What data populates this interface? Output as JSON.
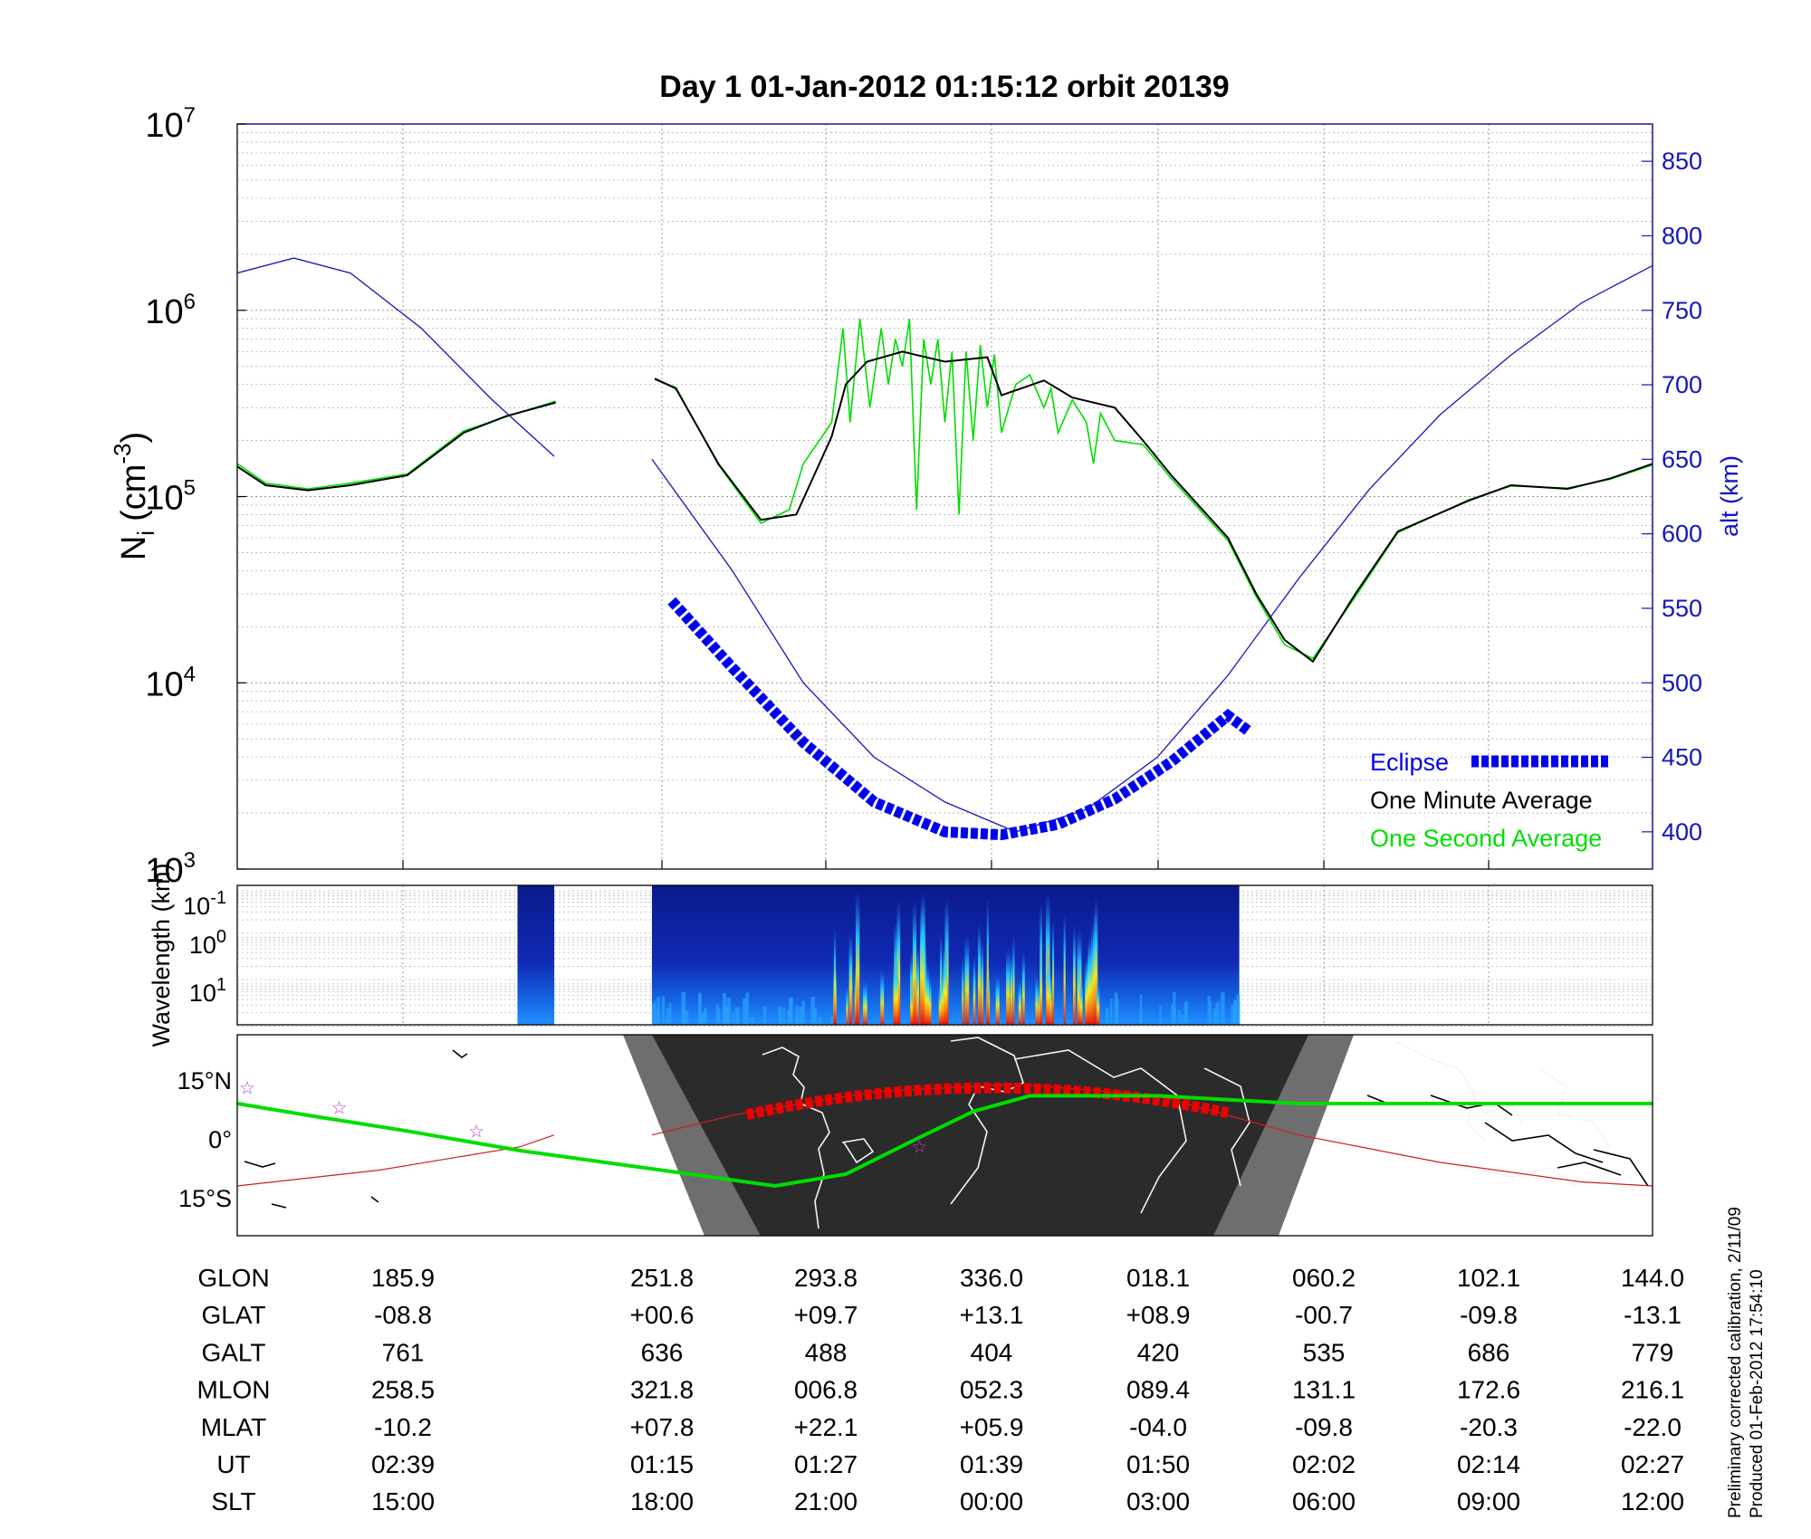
{
  "chart_data": [
    {
      "type": "line",
      "title": "Day 1  01-Jan-2012 01:15:12   orbit 20139",
      "x_label": "UT",
      "x_ticks": [
        "02:39",
        "01:15",
        "01:27",
        "01:39",
        "01:50",
        "02:02",
        "02:14",
        "02:27"
      ],
      "y_scale": "log",
      "ylim": [
        1000,
        10000000
      ],
      "y_ticks": [
        "10^3",
        "10^4",
        "10^5",
        "10^6",
        "10^7"
      ],
      "ylabel_main": "N",
      "ylabel_sub": "i",
      "ylabel_unit": "(cm",
      "ylabel_sup": "-3",
      "ylabel_close": ")",
      "y2label": "alt (km)",
      "y2lim": [
        375,
        875
      ],
      "y2_ticks": [
        "400",
        "450",
        "500",
        "550",
        "600",
        "650",
        "700",
        "750",
        "800",
        "850"
      ],
      "grid": true,
      "legend_position": "bottom-right",
      "series": [
        {
          "name": "Eclipse",
          "color": "#0000ee",
          "axis": "right",
          "style": "dotted-thick",
          "points": [
            [
              0.307,
              555
            ],
            [
              0.35,
              510
            ],
            [
              0.4,
              460
            ],
            [
              0.45,
              420
            ],
            [
              0.5,
              400
            ],
            [
              0.54,
              398
            ],
            [
              0.58,
              405
            ],
            [
              0.62,
              422
            ],
            [
              0.66,
              447
            ],
            [
              0.7,
              478
            ],
            [
              0.714,
              468
            ]
          ]
        },
        {
          "name": "One Minute Average",
          "color": "#000000",
          "axis": "left",
          "points": [
            [
              0.0,
              145000
            ],
            [
              0.02,
              115000
            ],
            [
              0.05,
              108000
            ],
            [
              0.08,
              115000
            ],
            [
              0.12,
              130000
            ],
            [
              0.16,
              220000
            ],
            [
              0.19,
              270000
            ],
            [
              0.225,
              320000
            ],
            [
              0.295,
              430000
            ],
            [
              0.31,
              380000
            ],
            [
              0.34,
              150000
            ],
            [
              0.37,
              75000
            ],
            [
              0.395,
              80000
            ],
            [
              0.42,
              210000
            ],
            [
              0.43,
              400000
            ],
            [
              0.445,
              530000
            ],
            [
              0.47,
              600000
            ],
            [
              0.5,
              530000
            ],
            [
              0.53,
              560000
            ],
            [
              0.54,
              350000
            ],
            [
              0.57,
              420000
            ],
            [
              0.59,
              340000
            ],
            [
              0.62,
              300000
            ],
            [
              0.64,
              200000
            ],
            [
              0.66,
              130000
            ],
            [
              0.7,
              60000
            ],
            [
              0.72,
              30000
            ],
            [
              0.74,
              17000
            ],
            [
              0.76,
              13000
            ],
            [
              0.79,
              30000
            ],
            [
              0.82,
              65000
            ],
            [
              0.87,
              95000
            ],
            [
              0.9,
              115000
            ],
            [
              0.94,
              110000
            ],
            [
              0.97,
              125000
            ],
            [
              1.0,
              150000
            ]
          ]
        },
        {
          "name": "One Second Average",
          "color": "#00dd00",
          "axis": "left",
          "points": [
            [
              0.0,
              150000
            ],
            [
              0.02,
              118000
            ],
            [
              0.05,
              110000
            ],
            [
              0.08,
              118000
            ],
            [
              0.12,
              132000
            ],
            [
              0.16,
              225000
            ],
            [
              0.19,
              268000
            ],
            [
              0.225,
              325000
            ],
            [
              0.295,
              425000
            ],
            [
              0.31,
              385000
            ],
            [
              0.34,
              148000
            ],
            [
              0.37,
              72000
            ],
            [
              0.39,
              85000
            ],
            [
              0.4,
              150000
            ],
            [
              0.42,
              250000
            ],
            [
              0.428,
              800000
            ],
            [
              0.433,
              250000
            ],
            [
              0.44,
              900000
            ],
            [
              0.447,
              300000
            ],
            [
              0.455,
              800000
            ],
            [
              0.46,
              400000
            ],
            [
              0.465,
              700000
            ],
            [
              0.47,
              500000
            ],
            [
              0.475,
              900000
            ],
            [
              0.48,
              85000
            ],
            [
              0.485,
              700000
            ],
            [
              0.49,
              400000
            ],
            [
              0.495,
              700000
            ],
            [
              0.5,
              250000
            ],
            [
              0.505,
              600000
            ],
            [
              0.51,
              80000
            ],
            [
              0.515,
              600000
            ],
            [
              0.52,
              200000
            ],
            [
              0.525,
              650000
            ],
            [
              0.53,
              300000
            ],
            [
              0.535,
              580000
            ],
            [
              0.54,
              220000
            ],
            [
              0.55,
              400000
            ],
            [
              0.56,
              450000
            ],
            [
              0.57,
              300000
            ],
            [
              0.575,
              380000
            ],
            [
              0.58,
              220000
            ],
            [
              0.59,
              330000
            ],
            [
              0.6,
              250000
            ],
            [
              0.605,
              150000
            ],
            [
              0.61,
              280000
            ],
            [
              0.62,
              200000
            ],
            [
              0.64,
              190000
            ],
            [
              0.66,
              125000
            ],
            [
              0.7,
              58000
            ],
            [
              0.72,
              29000
            ],
            [
              0.74,
              16000
            ],
            [
              0.76,
              13500
            ],
            [
              0.79,
              29000
            ],
            [
              0.82,
              64000
            ],
            [
              0.87,
              96000
            ],
            [
              0.9,
              114000
            ],
            [
              0.94,
              111000
            ],
            [
              0.97,
              124000
            ],
            [
              1.0,
              148000
            ]
          ]
        },
        {
          "name": "alt",
          "color": "#1515c0",
          "axis": "right",
          "points": [
            [
              0.0,
              775
            ],
            [
              0.04,
              785
            ],
            [
              0.08,
              775
            ],
            [
              0.13,
              738
            ],
            [
              0.18,
              690
            ],
            [
              0.224,
              652
            ],
            [
              0.293,
              650
            ],
            [
              0.35,
              575
            ],
            [
              0.4,
              500
            ],
            [
              0.45,
              450
            ],
            [
              0.5,
              420
            ],
            [
              0.55,
              400
            ],
            [
              0.6,
              415
            ],
            [
              0.65,
              450
            ],
            [
              0.7,
              505
            ],
            [
              0.75,
              570
            ],
            [
              0.8,
              630
            ],
            [
              0.85,
              680
            ],
            [
              0.9,
              720
            ],
            [
              0.95,
              755
            ],
            [
              1.0,
              780
            ]
          ]
        }
      ]
    },
    {
      "type": "heatmap",
      "ylabel": "Wavelength (km)",
      "y_ticks": [
        "10^-1",
        "10^0",
        "10^1"
      ],
      "segments": [
        {
          "x_start": 0.198,
          "x_end": 0.224
        },
        {
          "x_start": 0.293,
          "x_end": 0.708
        }
      ],
      "hot_region": {
        "x_start": 0.42,
        "x_end": 0.61
      }
    },
    {
      "type": "map",
      "ylabel_ticks": [
        "15°N",
        "0°",
        "15°S"
      ],
      "lat_ticks_deg": [
        15,
        0,
        -15
      ],
      "ground_track": {
        "color": "#00dd00",
        "points": [
          [
            0.0,
            9
          ],
          [
            0.05,
            6
          ],
          [
            0.12,
            2
          ],
          [
            0.2,
            -3
          ],
          [
            0.3,
            -8
          ],
          [
            0.38,
            -12
          ],
          [
            0.43,
            -9
          ],
          [
            0.48,
            0
          ],
          [
            0.52,
            7
          ],
          [
            0.56,
            11
          ],
          [
            0.6,
            11
          ],
          [
            0.65,
            11
          ],
          [
            0.7,
            10
          ],
          [
            0.75,
            9
          ],
          [
            0.8,
            9
          ],
          [
            0.85,
            9
          ],
          [
            0.9,
            9
          ],
          [
            1.0,
            9
          ]
        ]
      },
      "magnetic_equator": {
        "color": "#cc2020",
        "points": [
          [
            0.0,
            -12
          ],
          [
            0.1,
            -8
          ],
          [
            0.2,
            -2
          ],
          [
            0.224,
            1
          ],
          [
            0.293,
            1
          ],
          [
            0.35,
            6
          ],
          [
            0.45,
            12
          ],
          [
            0.55,
            14
          ],
          [
            0.65,
            11
          ],
          [
            0.7,
            6
          ],
          [
            0.75,
            1
          ],
          [
            0.85,
            -6
          ],
          [
            0.95,
            -11
          ],
          [
            1.0,
            -12
          ]
        ]
      },
      "eclipse_track": {
        "color": "#ee0000",
        "x_start": 0.36,
        "x_end": 0.706
      }
    }
  ],
  "table": {
    "rows": [
      {
        "label": "GLON",
        "values": [
          "185.9",
          "251.8",
          "293.8",
          "336.0",
          "018.1",
          "060.2",
          "102.1",
          "144.0"
        ]
      },
      {
        "label": "GLAT",
        "values": [
          "-08.8",
          "+00.6",
          "+09.7",
          "+13.1",
          "+08.9",
          "-00.7",
          "-09.8",
          "-13.1"
        ]
      },
      {
        "label": "GALT",
        "values": [
          "761",
          "636",
          "488",
          "404",
          "420",
          "535",
          "686",
          "779"
        ]
      },
      {
        "label": "MLON",
        "values": [
          "258.5",
          "321.8",
          "006.8",
          "052.3",
          "089.4",
          "131.1",
          "172.6",
          "216.1"
        ]
      },
      {
        "label": "MLAT",
        "values": [
          "-10.2",
          "+07.8",
          "+22.1",
          "+05.9",
          "-04.0",
          "-09.8",
          "-20.3",
          "-22.0"
        ]
      },
      {
        "label": "UT",
        "values": [
          "02:39",
          "01:15",
          "01:27",
          "01:39",
          "01:50",
          "02:02",
          "02:14",
          "02:27"
        ]
      },
      {
        "label": "SLT",
        "values": [
          "15:00",
          "18:00",
          "21:00",
          "00:00",
          "03:00",
          "06:00",
          "09:00",
          "12:00"
        ]
      }
    ]
  },
  "notes": {
    "line1": "Preliminary corrected calibration, 2/11/09",
    "line2": "Produced 01-Feb-2012 17:54:10"
  },
  "colors": {
    "eclipse": "#0000ee",
    "minute": "#000000",
    "second": "#00dd00",
    "altitude": "#1515c0",
    "night": "#2b2b2b",
    "twilight": "#6e6e6e"
  }
}
